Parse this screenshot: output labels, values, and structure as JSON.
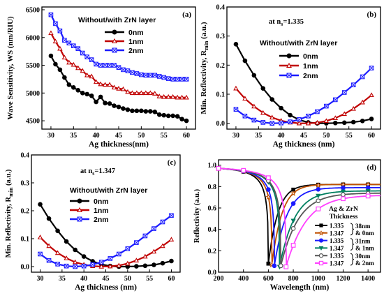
{
  "chart_data": [
    {
      "panel": "(a)",
      "type": "line",
      "title": "",
      "annotation": "Without/with ZrN layer",
      "xlabel": "Ag thickness(nm)",
      "ylabel": "Wave Sensitivity, WS (nm/RIU)",
      "xlim": [
        28,
        62
      ],
      "ylim": [
        4350,
        6550
      ],
      "xticks": [
        30,
        35,
        40,
        45,
        50,
        55,
        60
      ],
      "yticks": [
        4500,
        5000,
        5500,
        6000,
        6500
      ],
      "legend_position": "top-right",
      "series": [
        {
          "name": "0nm",
          "color": "#000000",
          "marker": "circle",
          "x": [
            30,
            31,
            32,
            33,
            34,
            35,
            36,
            37,
            38,
            39,
            40,
            41,
            42,
            43,
            44,
            45,
            46,
            47,
            48,
            49,
            50,
            51,
            52,
            53,
            54,
            55,
            56,
            57,
            58,
            59,
            60
          ],
          "y": [
            5670,
            5520,
            5420,
            5280,
            5150,
            5100,
            5050,
            5000,
            4980,
            4950,
            4840,
            4930,
            4820,
            4810,
            4770,
            4750,
            4720,
            4700,
            4680,
            4680,
            4680,
            4670,
            4670,
            4660,
            4610,
            4600,
            4590,
            4590,
            4580,
            4530,
            4500
          ]
        },
        {
          "name": "1nm",
          "color": "#c00000",
          "marker": "triangle",
          "x": [
            30,
            31,
            32,
            33,
            34,
            35,
            36,
            37,
            38,
            39,
            40,
            41,
            42,
            43,
            44,
            45,
            46,
            47,
            48,
            49,
            50,
            51,
            52,
            53,
            54,
            55,
            56,
            57,
            58,
            59,
            60
          ],
          "y": [
            6080,
            5930,
            5800,
            5640,
            5550,
            5510,
            5450,
            5400,
            5320,
            5300,
            5200,
            5160,
            5150,
            5150,
            5100,
            5080,
            5070,
            5020,
            5000,
            5000,
            5000,
            5000,
            5000,
            4990,
            4940,
            4930,
            4930,
            4930,
            4920,
            4920,
            4920
          ]
        },
        {
          "name": "2nm",
          "color": "#1a1aff",
          "marker": "x-square",
          "x": [
            30,
            31,
            32,
            33,
            34,
            35,
            36,
            37,
            38,
            39,
            40,
            41,
            42,
            43,
            44,
            45,
            46,
            47,
            48,
            49,
            50,
            51,
            52,
            53,
            54,
            55,
            56,
            57,
            58,
            59,
            60
          ],
          "y": [
            6410,
            6250,
            6120,
            5950,
            5900,
            5850,
            5800,
            5720,
            5650,
            5600,
            5520,
            5500,
            5500,
            5500,
            5500,
            5460,
            5420,
            5400,
            5370,
            5350,
            5330,
            5320,
            5320,
            5320,
            5300,
            5280,
            5260,
            5250,
            5250,
            5250,
            5250
          ]
        }
      ]
    },
    {
      "panel": "(b)",
      "type": "line",
      "annotation": "at n",
      "annotation_sub": "s",
      "annotation_rest": "=1.335",
      "annotation2": "Without/with ZrN layer",
      "xlabel": "Ag thickness (nm)",
      "ylabel": "Min. Reflectivity, R",
      "ylabel_sub": "min",
      "ylabel_unit": " (a.u.)",
      "xlim": [
        28,
        62
      ],
      "ylim": [
        -0.02,
        0.4
      ],
      "xticks": [
        30,
        35,
        40,
        45,
        50,
        55,
        60
      ],
      "yticks": [
        0.0,
        0.1,
        0.2,
        0.3,
        0.4
      ],
      "legend_position": "top-center",
      "series": [
        {
          "name": "0nm",
          "color": "#000000",
          "marker": "circle",
          "x": [
            30,
            32,
            34,
            36,
            38,
            40,
            42,
            44,
            46,
            48,
            50,
            52,
            54,
            56,
            58,
            60
          ],
          "y": [
            0.272,
            0.215,
            0.165,
            0.12,
            0.082,
            0.052,
            0.028,
            0.012,
            0.003,
            0.0,
            0.0,
            0.001,
            0.002,
            0.004,
            0.008,
            0.015
          ]
        },
        {
          "name": "1nm",
          "color": "#c00000",
          "marker": "triangle",
          "x": [
            30,
            32,
            34,
            36,
            38,
            40,
            42,
            44,
            46,
            48,
            50,
            52,
            54,
            56,
            58,
            60
          ],
          "y": [
            0.12,
            0.085,
            0.058,
            0.036,
            0.02,
            0.009,
            0.003,
            0.0,
            0.0,
            0.002,
            0.008,
            0.018,
            0.032,
            0.05,
            0.072,
            0.097
          ]
        },
        {
          "name": "2nm",
          "color": "#1a1aff",
          "marker": "x-square",
          "x": [
            30,
            32,
            34,
            36,
            38,
            40,
            42,
            44,
            46,
            48,
            50,
            52,
            54,
            56,
            58,
            60
          ],
          "y": [
            0.048,
            0.025,
            0.011,
            0.003,
            0.0,
            0.001,
            0.005,
            0.013,
            0.025,
            0.04,
            0.059,
            0.081,
            0.106,
            0.132,
            0.16,
            0.19
          ]
        }
      ]
    },
    {
      "panel": "(c)",
      "type": "line",
      "annotation": "at n",
      "annotation_sub": "s",
      "annotation_rest": "=1.347",
      "annotation2": "Without/with ZrN layer",
      "xlabel": "Ag thickness (nm)",
      "ylabel": "Min. Reflectivity, R",
      "ylabel_sub": "min",
      "ylabel_unit": " (a.u.)",
      "xlim": [
        28,
        62
      ],
      "ylim": [
        -0.02,
        0.4
      ],
      "xticks": [
        30,
        35,
        40,
        45,
        50,
        55,
        60
      ],
      "yticks": [
        0.0,
        0.1,
        0.2,
        0.3,
        0.4
      ],
      "legend_position": "top-center",
      "series": [
        {
          "name": "0nm",
          "color": "#000000",
          "marker": "circle",
          "x": [
            30,
            32,
            34,
            36,
            38,
            40,
            42,
            44,
            46,
            48,
            50,
            52,
            54,
            56,
            58,
            60
          ],
          "y": [
            0.223,
            0.172,
            0.128,
            0.09,
            0.06,
            0.036,
            0.019,
            0.008,
            0.002,
            0.0,
            0.0,
            0.001,
            0.003,
            0.006,
            0.012,
            0.02
          ]
        },
        {
          "name": "1nm",
          "color": "#c00000",
          "marker": "triangle",
          "x": [
            30,
            32,
            34,
            36,
            38,
            40,
            42,
            44,
            46,
            48,
            50,
            52,
            54,
            56,
            58,
            60
          ],
          "y": [
            0.105,
            0.074,
            0.049,
            0.03,
            0.016,
            0.007,
            0.002,
            0.0,
            0.001,
            0.004,
            0.011,
            0.022,
            0.036,
            0.054,
            0.074,
            0.097
          ]
        },
        {
          "name": "2nm",
          "color": "#1a1aff",
          "marker": "x-square",
          "x": [
            30,
            32,
            34,
            36,
            38,
            40,
            42,
            44,
            46,
            48,
            50,
            52,
            54,
            56,
            58,
            60
          ],
          "y": [
            0.045,
            0.022,
            0.009,
            0.002,
            0.0,
            0.002,
            0.007,
            0.016,
            0.029,
            0.045,
            0.064,
            0.086,
            0.11,
            0.136,
            0.16,
            0.183
          ]
        }
      ]
    },
    {
      "panel": "(d)",
      "type": "line",
      "xlabel": "Wavelength (nm)",
      "ylabel": "Reflectivity (a.u.)",
      "xlim": [
        200,
        1500
      ],
      "ylim": [
        0.0,
        1.05
      ],
      "xticks": [
        200,
        400,
        600,
        800,
        1000,
        1200,
        1400
      ],
      "yticks": [
        0.0,
        0.2,
        0.4,
        0.6,
        0.8,
        1.0
      ],
      "legend_title": "Ag & ZrN\nThickness",
      "legend_position": "bottom-right",
      "legend_groups": [
        "38nm & 0nm",
        "31nm & 1nm",
        "30nm & 2nm"
      ],
      "series": [
        {
          "name": "1.335",
          "group": "38nm & 0nm",
          "color": "#000000",
          "marker": "square",
          "dip": 600,
          "width": 55,
          "min": 0.08,
          "end": 0.82
        },
        {
          "name": "1.347",
          "group": "38nm & 0nm",
          "color": "#c05000",
          "marker": "star",
          "dip": 628,
          "width": 58,
          "min": 0.07,
          "end": 0.82
        },
        {
          "name": "1.335",
          "group": "31nm & 1nm",
          "color": "#1a1aff",
          "marker": "circle",
          "dip": 648,
          "width": 70,
          "min": 0.06,
          "end": 0.79
        },
        {
          "name": "1.347",
          "group": "31nm & 1nm",
          "color": "#008060",
          "marker": "triangle-down",
          "dip": 690,
          "width": 85,
          "min": 0.05,
          "end": 0.76
        },
        {
          "name": "1.335",
          "group": "30nm & 2nm",
          "color": "#555555",
          "marker": "circle-open",
          "dip": 700,
          "width": 100,
          "min": 0.06,
          "end": 0.74
        },
        {
          "name": "1.347",
          "group": "30nm & 2nm",
          "color": "#ff40ff",
          "marker": "square-open",
          "dip": 742,
          "width": 115,
          "min": 0.05,
          "end": 0.72
        }
      ]
    }
  ]
}
